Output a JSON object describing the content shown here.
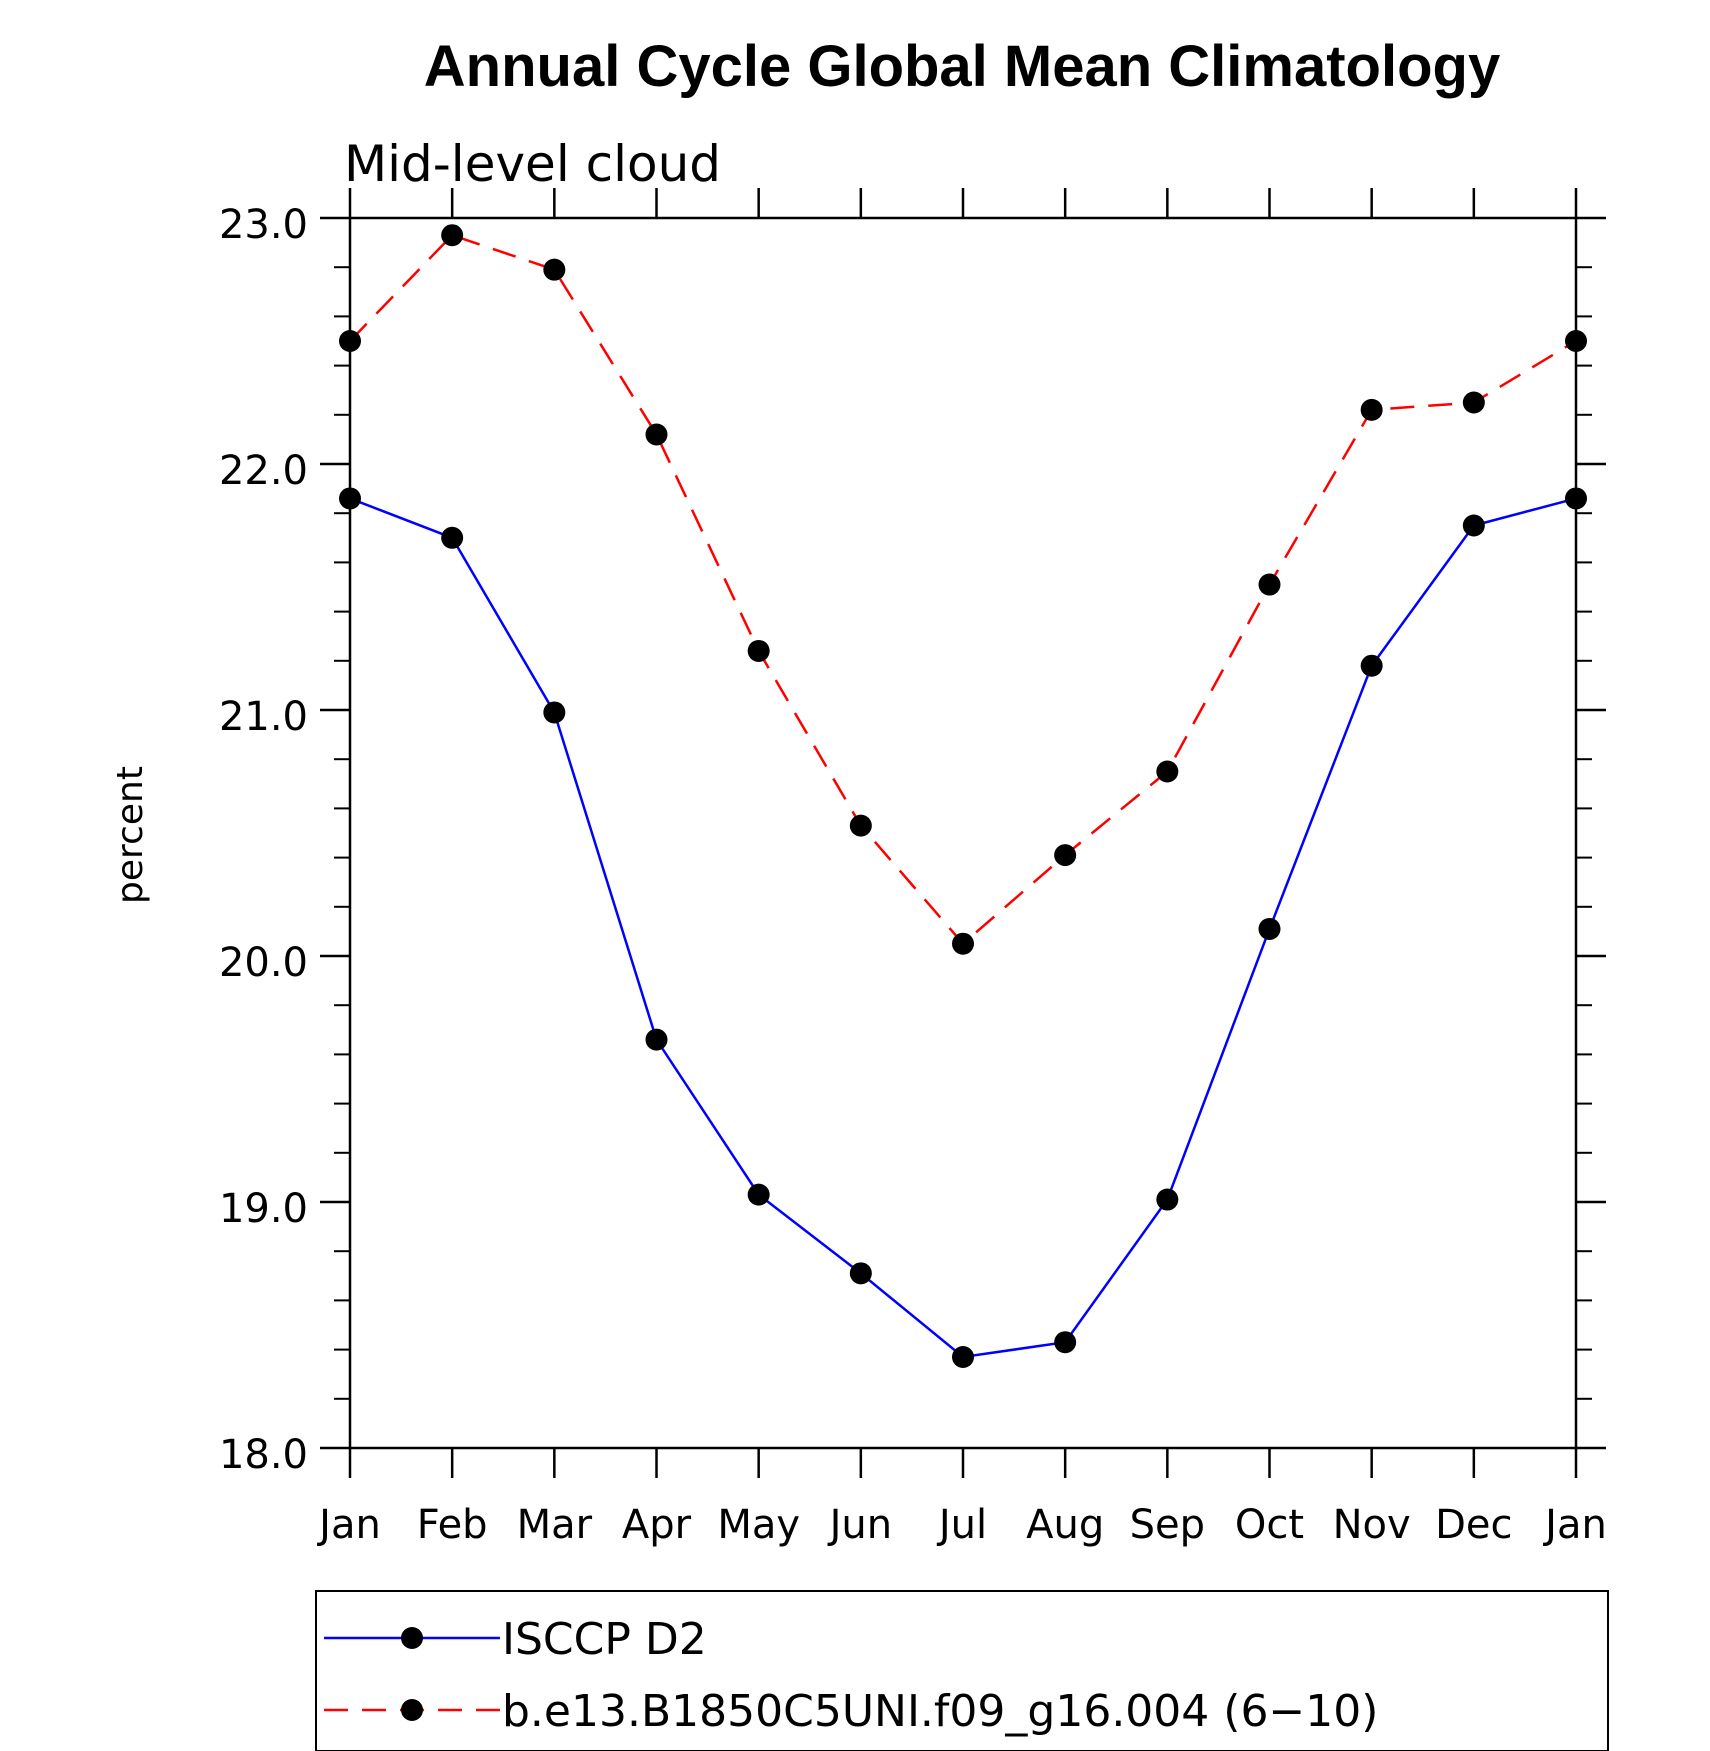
{
  "chart_data": {
    "type": "line",
    "title": "Annual Cycle Global Mean Climatology",
    "subtitle": "Mid-level cloud",
    "xlabel": "",
    "ylabel": "percent",
    "categories": [
      "Jan",
      "Feb",
      "Mar",
      "Apr",
      "May",
      "Jun",
      "Jul",
      "Aug",
      "Sep",
      "Oct",
      "Nov",
      "Dec",
      "Jan"
    ],
    "ylim": [
      18.0,
      23.0
    ],
    "yticks": [
      "18.0",
      "19.0",
      "20.0",
      "21.0",
      "22.0",
      "23.0"
    ],
    "grid": false,
    "legend_position": "bottom",
    "series": [
      {
        "name": "ISCCP D2",
        "color": "#0000ff",
        "line_style": "solid",
        "marker": "filled-circle",
        "values": [
          21.86,
          21.7,
          20.99,
          19.66,
          19.03,
          18.71,
          18.37,
          18.43,
          19.01,
          20.11,
          21.18,
          21.75,
          21.86
        ]
      },
      {
        "name": "b.e13.B1850C5UNI.f09_g16.004 (6−10)",
        "color": "#ff0000",
        "line_style": "dashed",
        "marker": "filled-circle",
        "values": [
          22.5,
          22.93,
          22.79,
          22.12,
          21.24,
          20.53,
          20.05,
          20.41,
          20.75,
          21.51,
          22.22,
          22.25,
          22.5
        ]
      }
    ]
  }
}
